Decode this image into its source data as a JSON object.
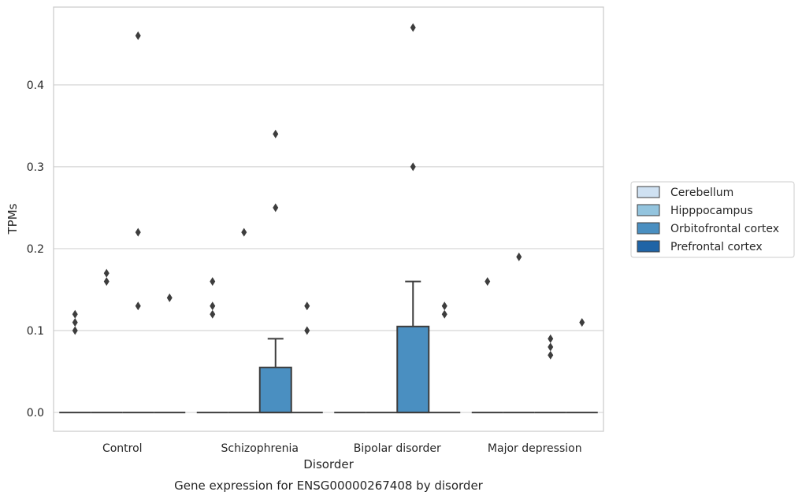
{
  "chart_data": {
    "type": "box",
    "title": "",
    "caption": "Gene expression for ENSG00000267408 by disorder",
    "xlabel": "Disorder",
    "ylabel": "TPMs",
    "ylim": [
      -0.023,
      0.495
    ],
    "yticks": [
      0.0,
      0.1,
      0.2,
      0.3,
      0.4
    ],
    "ytick_labels": [
      "0.0",
      "0.1",
      "0.2",
      "0.3",
      "0.4"
    ],
    "grid": "horizontal",
    "legend_position": "right",
    "categories": [
      "Control",
      "Schizophrenia",
      "Bipolar disorder",
      "Major depression"
    ],
    "series": [
      {
        "name": "Cerebellum",
        "color": "#cfe1f2",
        "boxes": [
          {
            "q1": 0,
            "median": 0,
            "q3": 0,
            "whisker_low": 0,
            "whisker_high": 0,
            "outliers": [
              0.12,
              0.11,
              0.1
            ]
          },
          {
            "q1": 0,
            "median": 0,
            "q3": 0,
            "whisker_low": 0,
            "whisker_high": 0,
            "outliers": [
              0.16,
              0.13,
              0.12
            ]
          },
          {
            "q1": 0,
            "median": 0,
            "q3": 0,
            "whisker_low": 0,
            "whisker_high": 0,
            "outliers": []
          },
          {
            "q1": 0,
            "median": 0,
            "q3": 0,
            "whisker_low": 0,
            "whisker_high": 0,
            "outliers": [
              0.16
            ]
          }
        ]
      },
      {
        "name": "Hipppocampus",
        "color": "#93c4de",
        "boxes": [
          {
            "q1": 0,
            "median": 0,
            "q3": 0,
            "whisker_low": 0,
            "whisker_high": 0,
            "outliers": [
              0.17,
              0.16
            ]
          },
          {
            "q1": 0,
            "median": 0,
            "q3": 0,
            "whisker_low": 0,
            "whisker_high": 0,
            "outliers": [
              0.22
            ]
          },
          {
            "q1": 0,
            "median": 0,
            "q3": 0,
            "whisker_low": 0,
            "whisker_high": 0,
            "outliers": []
          },
          {
            "q1": 0,
            "median": 0,
            "q3": 0,
            "whisker_low": 0,
            "whisker_high": 0,
            "outliers": [
              0.19
            ]
          }
        ]
      },
      {
        "name": "Orbitofrontal cortex",
        "color": "#4a8fc1",
        "boxes": [
          {
            "q1": 0,
            "median": 0,
            "q3": 0,
            "whisker_low": 0,
            "whisker_high": 0,
            "outliers": [
              0.46,
              0.22,
              0.13
            ]
          },
          {
            "q1": 0,
            "median": 0,
            "q3": 0.055,
            "whisker_low": 0,
            "whisker_high": 0.09,
            "outliers": [
              0.34,
              0.25
            ]
          },
          {
            "q1": 0,
            "median": 0,
            "q3": 0.105,
            "whisker_low": 0,
            "whisker_high": 0.16,
            "outliers": [
              0.47,
              0.3
            ]
          },
          {
            "q1": 0,
            "median": 0,
            "q3": 0,
            "whisker_low": 0,
            "whisker_high": 0,
            "outliers": [
              0.09,
              0.08,
              0.07
            ]
          }
        ]
      },
      {
        "name": "Prefrontal cortex",
        "color": "#1f64a6",
        "boxes": [
          {
            "q1": 0,
            "median": 0,
            "q3": 0,
            "whisker_low": 0,
            "whisker_high": 0,
            "outliers": [
              0.14
            ]
          },
          {
            "q1": 0,
            "median": 0,
            "q3": 0,
            "whisker_low": 0,
            "whisker_high": 0,
            "outliers": [
              0.13,
              0.1
            ]
          },
          {
            "q1": 0,
            "median": 0,
            "q3": 0,
            "whisker_low": 0,
            "whisker_high": 0,
            "outliers": [
              0.13,
              0.12
            ]
          },
          {
            "q1": 0,
            "median": 0,
            "q3": 0,
            "whisker_low": 0,
            "whisker_high": 0,
            "outliers": [
              0.11
            ]
          }
        ]
      }
    ]
  }
}
